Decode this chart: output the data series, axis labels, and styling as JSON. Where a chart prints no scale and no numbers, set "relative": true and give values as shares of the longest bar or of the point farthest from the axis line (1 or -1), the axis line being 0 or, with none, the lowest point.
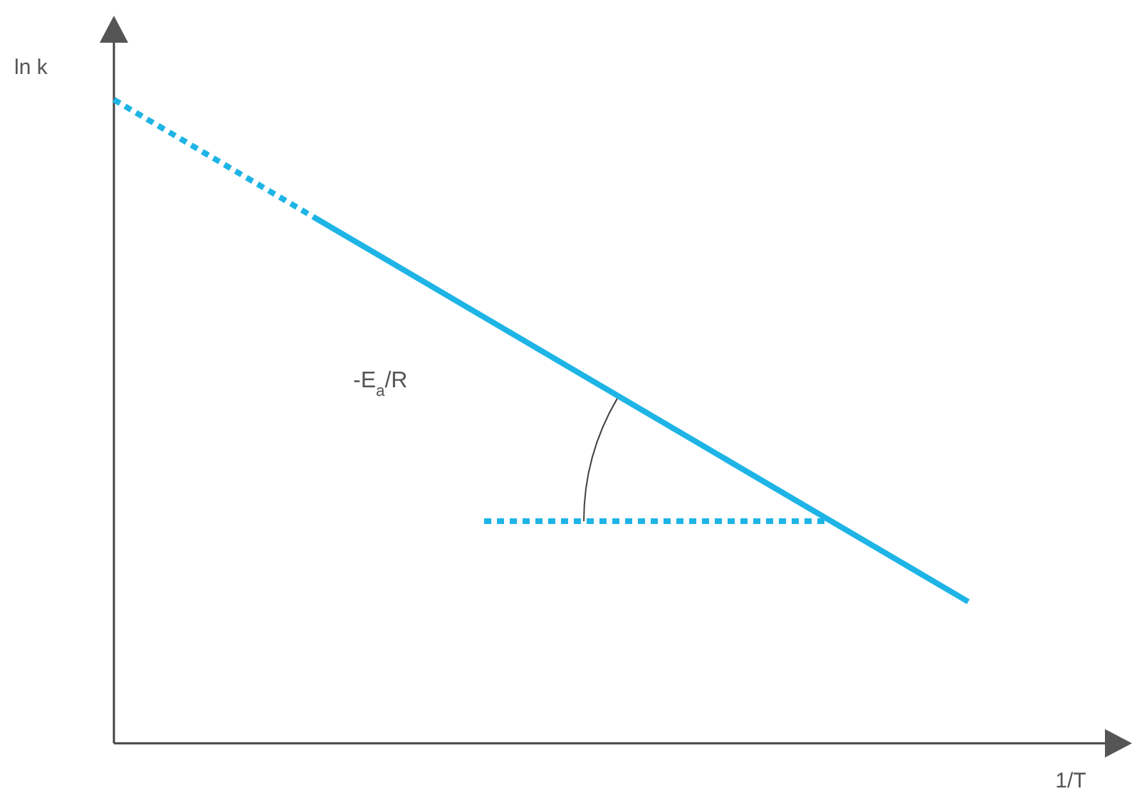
{
  "chart_data": {
    "type": "line",
    "relative": true,
    "xlabel": "1/T",
    "ylabel": "ln k",
    "categories": [
      null,
      null,
      null,
      null,
      null,
      null,
      null,
      null,
      null,
      null,
      null,
      null,
      null,
      null,
      null,
      null,
      null,
      null,
      null,
      null,
      null,
      null,
      null,
      null,
      null,
      null,
      null,
      null,
      null,
      null,
      null
    ],
    "series": [
      {
        "color": "#1eb4e6",
        "line_style": "dotted",
        "values": [
          1,
          null,
          null,
          null,
          null,
          null,
          null,
          0.818,
          null,
          null,
          null,
          null,
          null,
          null,
          null,
          null,
          null,
          null,
          null,
          null,
          null,
          null,
          null,
          null,
          null,
          null,
          null,
          null,
          null,
          null,
          null
        ]
      },
      {
        "color": "#1eb4e6",
        "line_style": "solid",
        "values": [
          null,
          null,
          null,
          null,
          null,
          null,
          null,
          0.818,
          null,
          null,
          null,
          null,
          null,
          null,
          null,
          null,
          null,
          null,
          null,
          null,
          null,
          null,
          null,
          null,
          null,
          null,
          null,
          null,
          null,
          null,
          0.22
        ]
      },
      {
        "color": "#1eb4e6",
        "line_style": "dotted",
        "values": [
          null,
          null,
          null,
          null,
          null,
          null,
          null,
          null,
          null,
          null,
          null,
          null,
          null,
          0.345,
          null,
          null,
          null,
          null,
          null,
          null,
          null,
          null,
          null,
          null,
          null,
          0.345,
          null,
          null,
          null,
          null,
          null
        ]
      }
    ],
    "annotations": [
      "-E$_{a}$/R"
    ]
  }
}
